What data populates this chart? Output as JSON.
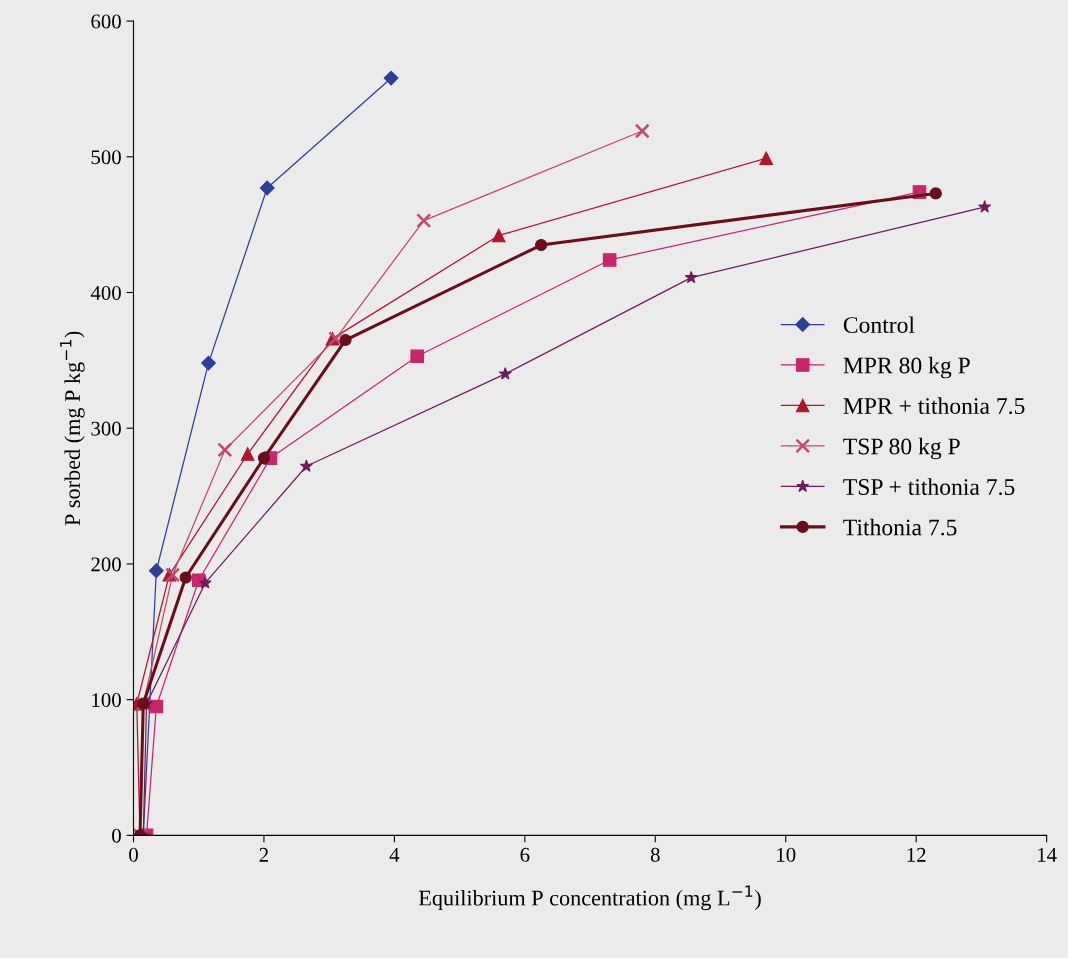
{
  "chart_data": {
    "type": "line",
    "xlabel": "Equilibrium P concentration (mg L$^{−1}$)",
    "ylabel": "P sorbed (mg P kg$^{−1}$)",
    "xlim": [
      0,
      14
    ],
    "xticks": [
      0,
      2,
      4,
      6,
      8,
      10,
      12,
      14
    ],
    "ylim": [
      0,
      600
    ],
    "yticks": [
      0,
      100,
      200,
      300,
      400,
      500,
      600
    ],
    "grid": false,
    "legend": "right",
    "series": [
      {
        "name": "Control",
        "color": "#2e3e9a",
        "marker": "diamond",
        "x": [
          0.15,
          0.35,
          1.15,
          2.05,
          3.95
        ],
        "values": [
          0,
          195,
          348,
          477,
          558
        ]
      },
      {
        "name": "MPR 80 kg P",
        "color": "#c8256a",
        "marker": "square",
        "x": [
          0.2,
          0.35,
          1.0,
          2.1,
          4.35,
          7.3,
          12.05
        ],
        "values": [
          0,
          95,
          188,
          278,
          353,
          424,
          474
        ]
      },
      {
        "name": "MPR + tithonia 7.5",
        "color": "#b0142e",
        "marker": "triangle",
        "x": [
          0.1,
          0.05,
          0.55,
          1.75,
          3.05,
          5.6,
          9.7
        ],
        "values": [
          0,
          97,
          192,
          281,
          366,
          442,
          499
        ]
      },
      {
        "name": "TSP 80 kg P",
        "color": "#c04a6c",
        "marker": "cross",
        "x": [
          0.1,
          0.15,
          0.6,
          1.4,
          3.1,
          4.45,
          7.8
        ],
        "values": [
          0,
          97,
          192,
          284,
          366,
          453,
          519
        ]
      },
      {
        "name": "TSP + tithonia 7.5",
        "color": "#6e1c5a",
        "marker": "star",
        "x": [
          0.15,
          0.2,
          1.1,
          2.65,
          5.7,
          8.55,
          13.05
        ],
        "values": [
          0,
          97,
          186,
          272,
          340,
          411,
          463
        ]
      },
      {
        "name": "Tithonia 7.5",
        "color": "#6a0e1c",
        "marker": "circle",
        "x": [
          0.1,
          0.15,
          0.8,
          2.0,
          3.25,
          6.25,
          12.3
        ],
        "values": [
          0,
          97,
          190,
          278,
          365,
          435,
          473
        ]
      }
    ]
  }
}
